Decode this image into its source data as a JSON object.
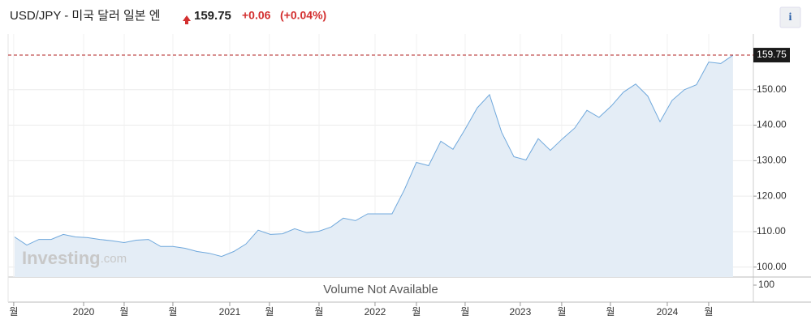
{
  "chart_data": {
    "type": "area",
    "title": "USD/JPY - 미국 달러 일본 엔",
    "price": "159.75",
    "change": "+0.06",
    "change_percent": "(+0.04%)",
    "info": "i",
    "watermark": [
      "Investing",
      ".com"
    ],
    "volume_message": "Volume Not Available",
    "volume_yticks": [
      100
    ],
    "series": [
      {
        "name": "USD/JPY",
        "color": "#6fa8dc",
        "fill": "#e4edf6",
        "values": [
          108.5,
          106.2,
          107.8,
          107.8,
          109.2,
          108.5,
          108.3,
          107.8,
          107.4,
          106.9,
          107.6,
          107.8,
          105.8,
          105.8,
          105.3,
          104.4,
          103.9,
          103.0,
          104.4,
          106.5,
          110.4,
          109.2,
          109.4,
          110.8,
          109.7,
          110.1,
          111.3,
          113.8,
          113.1,
          115.0,
          115.0,
          115.0,
          121.7,
          129.5,
          128.6,
          135.5,
          133.2,
          138.9,
          144.9,
          148.6,
          138.0,
          131.1,
          130.2,
          136.2,
          132.9,
          136.2,
          139.2,
          144.2,
          142.2,
          145.4,
          149.3,
          151.6,
          148.2,
          141.0,
          147.0,
          150.0,
          151.4,
          157.8,
          157.4,
          159.75
        ]
      }
    ],
    "reference_color": "#b22222",
    "xlim": [
      -0.53,
      60.67
    ],
    "xticks": [
      {
        "value": -0.07,
        "label": "월"
      },
      {
        "value": 5.67,
        "label": "2020"
      },
      {
        "value": 9,
        "label": "월"
      },
      {
        "value": 13,
        "label": "월"
      },
      {
        "value": 17.67,
        "label": "2021"
      },
      {
        "value": 20.93,
        "label": "월"
      },
      {
        "value": 25,
        "label": "월"
      },
      {
        "value": 29.6,
        "label": "2022"
      },
      {
        "value": 33,
        "label": "월"
      },
      {
        "value": 37,
        "label": "월"
      },
      {
        "value": 41.53,
        "label": "2023"
      },
      {
        "value": 44.93,
        "label": "월"
      },
      {
        "value": 48.93,
        "label": "월"
      },
      {
        "value": 53.6,
        "label": "2024"
      },
      {
        "value": 57,
        "label": "월"
      }
    ],
    "ylim": [
      97.2,
      165.7
    ],
    "yticks": [
      {
        "value": 100,
        "label": "100.00"
      },
      {
        "value": 110,
        "label": "110.00"
      },
      {
        "value": 120,
        "label": "120.00"
      },
      {
        "value": 130,
        "label": "130.00"
      },
      {
        "value": 140,
        "label": "140.00"
      },
      {
        "value": 150,
        "label": "150.00"
      }
    ],
    "grid": true
  }
}
